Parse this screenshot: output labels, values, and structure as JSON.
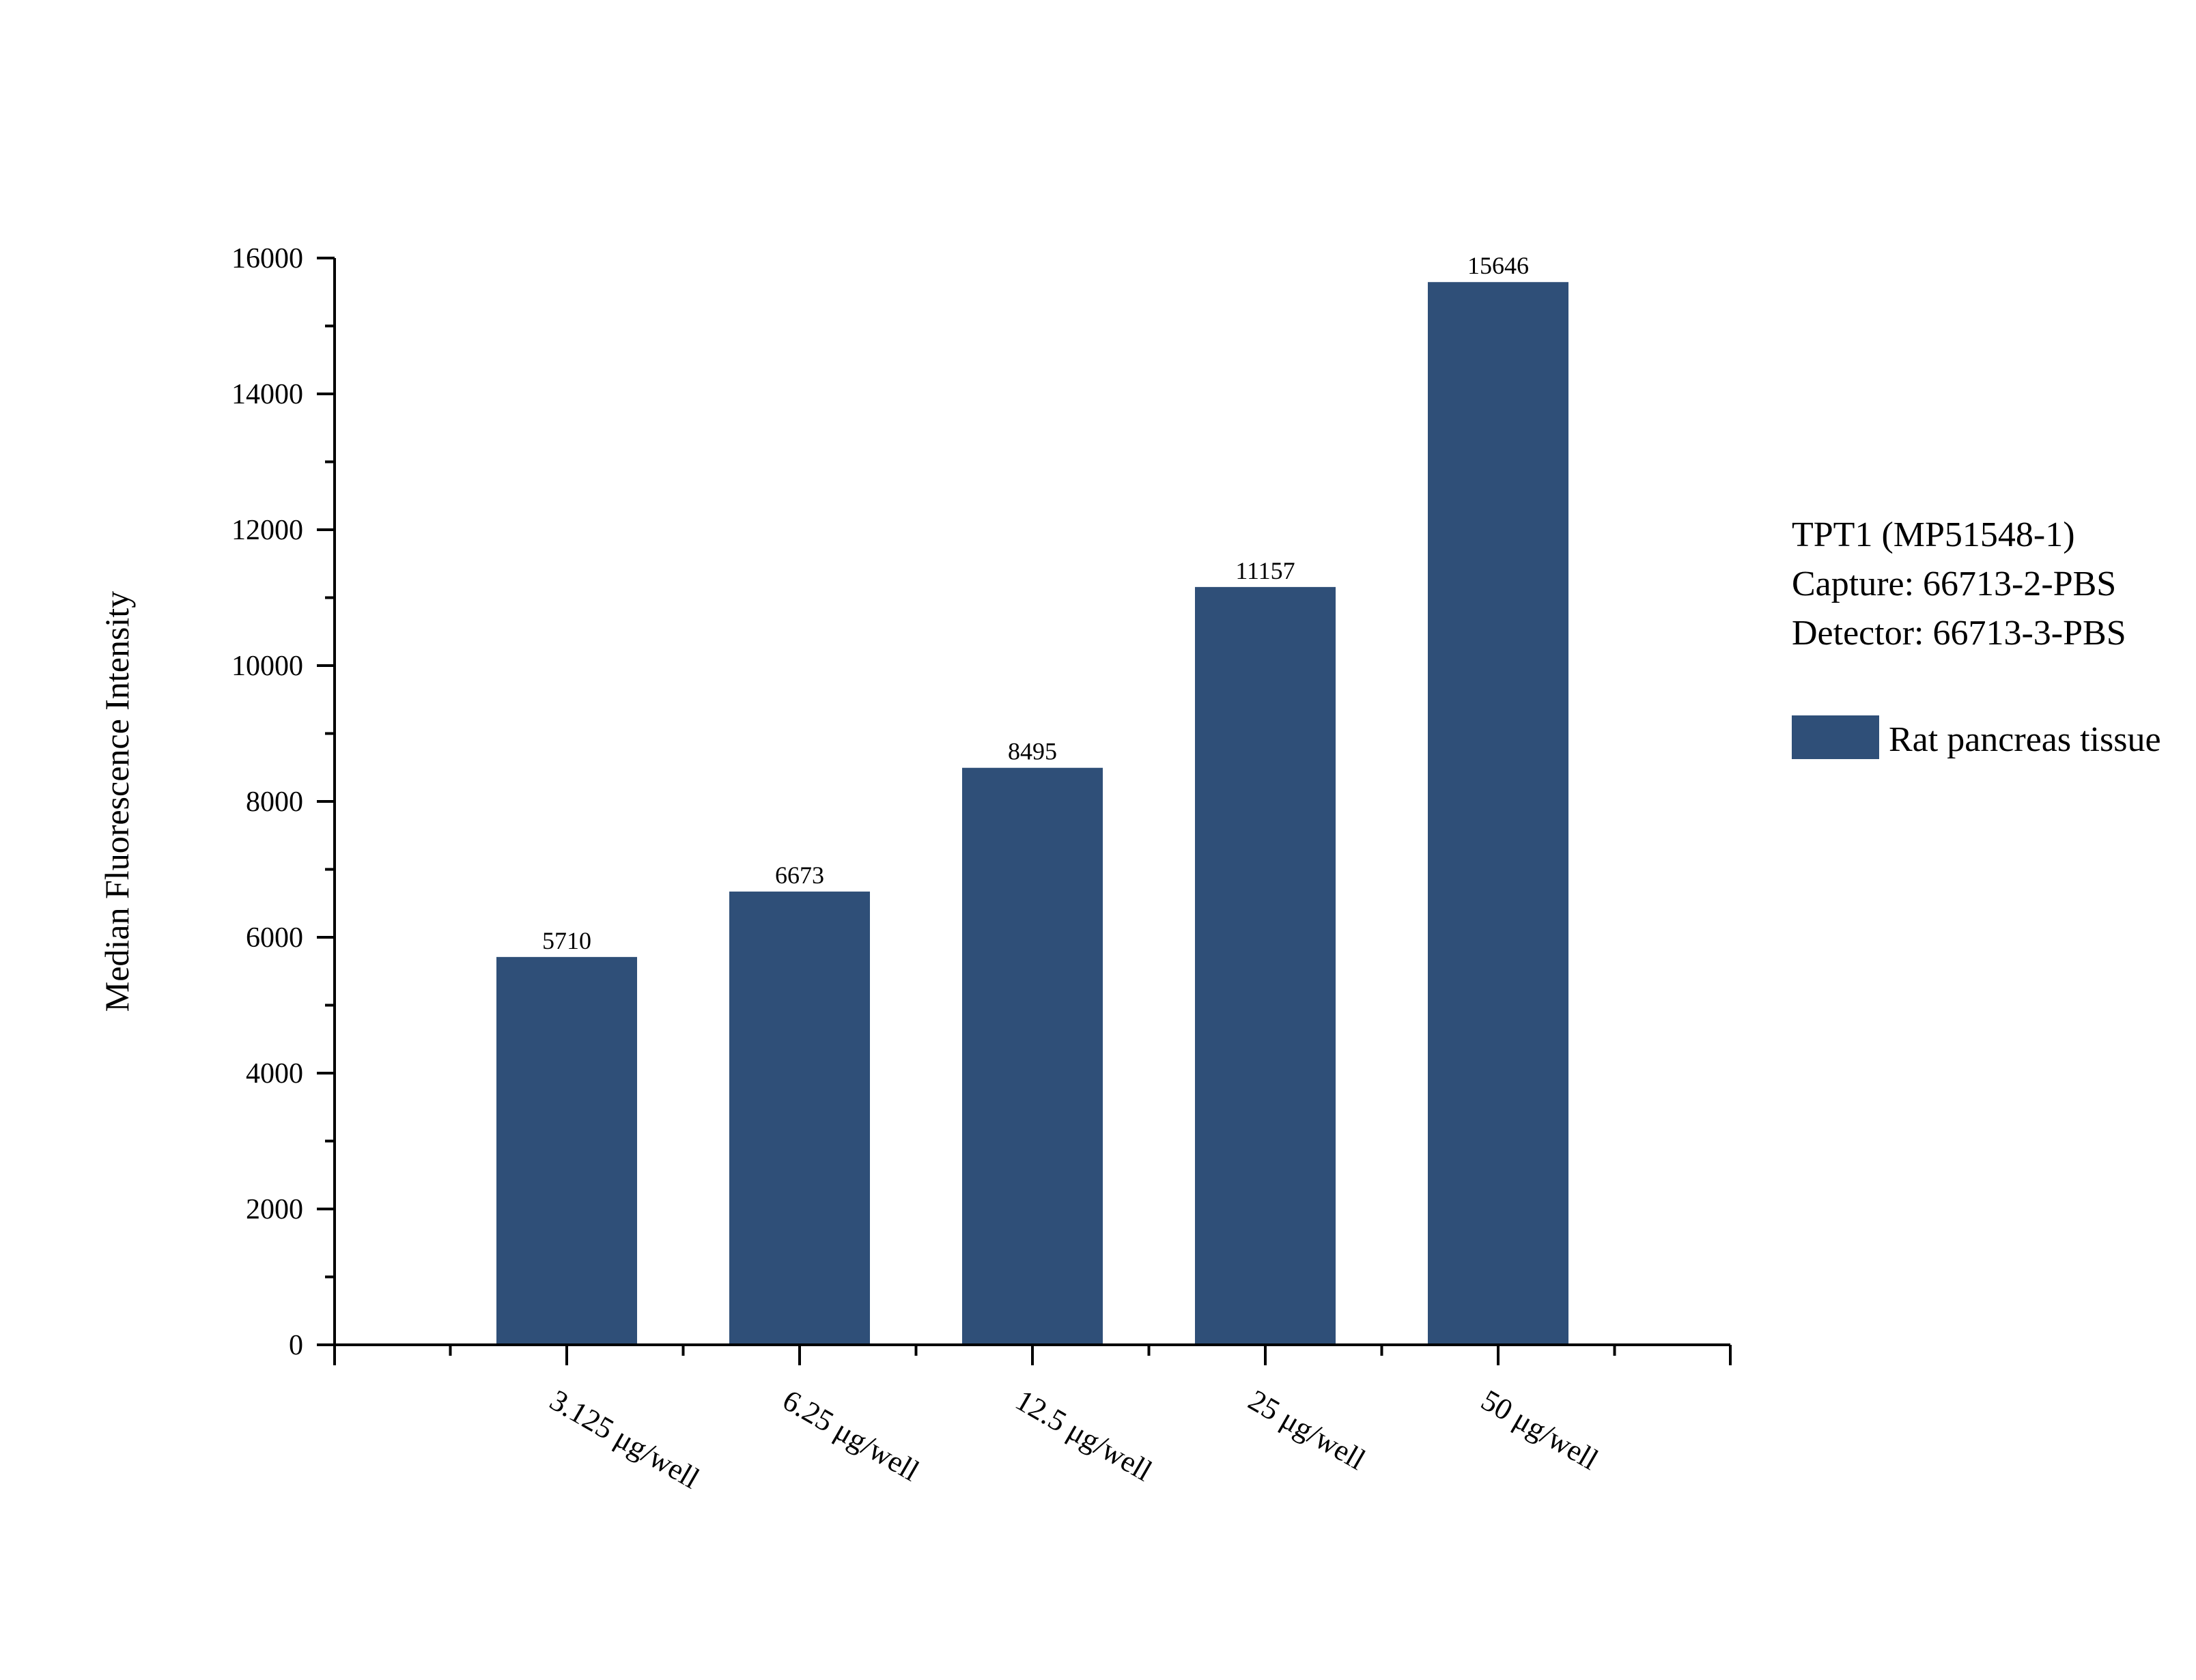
{
  "chart_data": {
    "type": "bar",
    "categories": [
      "3.125  μg/well",
      "6.25 μg/well",
      "12.5 μg/well",
      "25 μg/well",
      "50 μg/well"
    ],
    "series": [
      {
        "name": "Rat pancreas tissue",
        "values": [
          5710,
          6673,
          8495,
          11157,
          15646
        ]
      }
    ],
    "value_labels": [
      "5710",
      "6673",
      "8495",
      "11157",
      "15646"
    ],
    "ylabel": "Median Fluorescence Intensity",
    "xlabel": "",
    "ylim": [
      0,
      16000
    ],
    "yticks": [
      0,
      2000,
      4000,
      6000,
      8000,
      10000,
      12000,
      14000,
      16000
    ],
    "ytick_labels": [
      "0",
      "2000",
      "4000",
      "6000",
      "8000",
      "10000",
      "12000",
      "14000",
      "16000"
    ],
    "grid": false,
    "legend_position": "right",
    "info_lines": [
      "TPT1 (MP51548-1)",
      "Capture: 66713-2-PBS",
      "Detector: 66713-3-PBS"
    ],
    "bar_color": "#2f4f78"
  }
}
